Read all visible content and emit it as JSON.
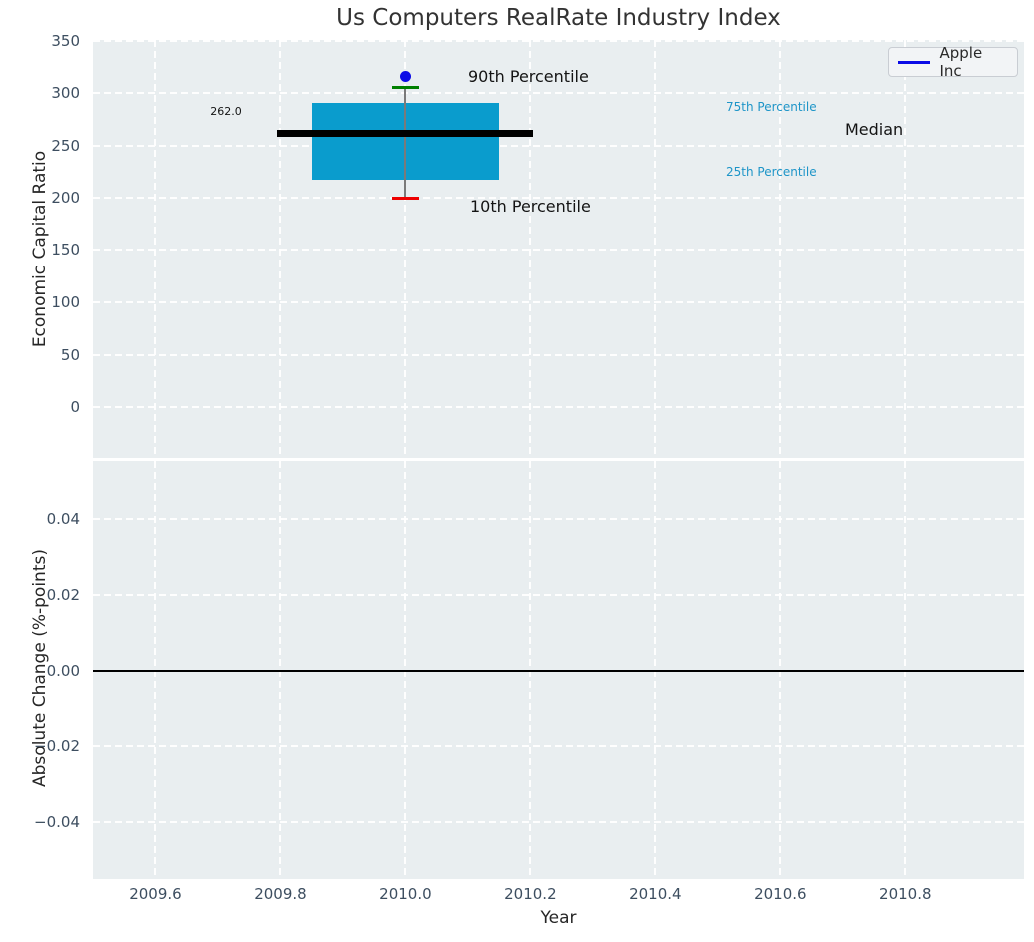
{
  "chart_data": {
    "type": "box",
    "title": "Us Computers RealRate Industry Index",
    "xlabel": "Year",
    "legend": {
      "label": "Apple Inc",
      "position": "upper right"
    },
    "x_ticks": {
      "values": [
        2009.6,
        2009.8,
        2010.0,
        2010.2,
        2010.4,
        2010.6,
        2010.8
      ],
      "labels": [
        "2009.6",
        "2009.8",
        "2010.0",
        "2010.2",
        "2010.4",
        "2010.6",
        "2010.8"
      ]
    },
    "top_panel": {
      "ylabel": "Economic Capital Ratio",
      "xlim": [
        2009.5,
        2010.99
      ],
      "ylim": [
        -49,
        351
      ],
      "y_ticks": {
        "values": [
          350,
          300,
          250,
          200,
          150,
          100,
          50,
          0
        ],
        "labels": [
          "350",
          "300",
          "250",
          "200",
          "150",
          "100",
          "50",
          "0"
        ]
      },
      "grid": "white-dashed",
      "boxplot": {
        "x": 2010.0,
        "p10": 199,
        "q1": 217,
        "median": 262,
        "q3": 291,
        "p90": 306,
        "box_x_range": [
          2009.85,
          2010.15
        ],
        "median_x_range": [
          2009.795,
          2010.205
        ],
        "cap_x_range": [
          2009.979,
          2010.021
        ]
      },
      "series": [
        {
          "name": "Apple Inc",
          "points": [
            {
              "x": 2010.0,
              "y": 316
            }
          ]
        }
      ],
      "annotations": [
        {
          "text": "262.0"
        },
        {
          "text": "90th Percentile"
        },
        {
          "text": "10th Percentile"
        },
        {
          "text": "75th Percentile"
        },
        {
          "text": "25th Percentile"
        },
        {
          "text": "Median"
        }
      ]
    },
    "bottom_panel": {
      "ylabel": "Absolute Change (%-points)",
      "ylim": [
        -0.0551,
        0.0554
      ],
      "y_ticks": {
        "values": [
          0.04,
          0.02,
          0,
          -0.02,
          -0.04
        ],
        "labels": [
          "0.04",
          "0.02",
          "0.00",
          "−0.02",
          "−0.04"
        ]
      },
      "zero_line_y": 0,
      "grid": "white-dashed"
    },
    "colors": {
      "box_fill": "#0a9ccd",
      "whisker": "#7a7a7a",
      "cap_90th": "#008000",
      "cap_10th": "#ee0000",
      "median_line": "#000000",
      "apple": "#0b0be6",
      "percentile_label": "#1e95c8",
      "axes_background": "#e9eef0",
      "gridline": "#ffffff",
      "tick_text": "#3d4e60"
    }
  }
}
